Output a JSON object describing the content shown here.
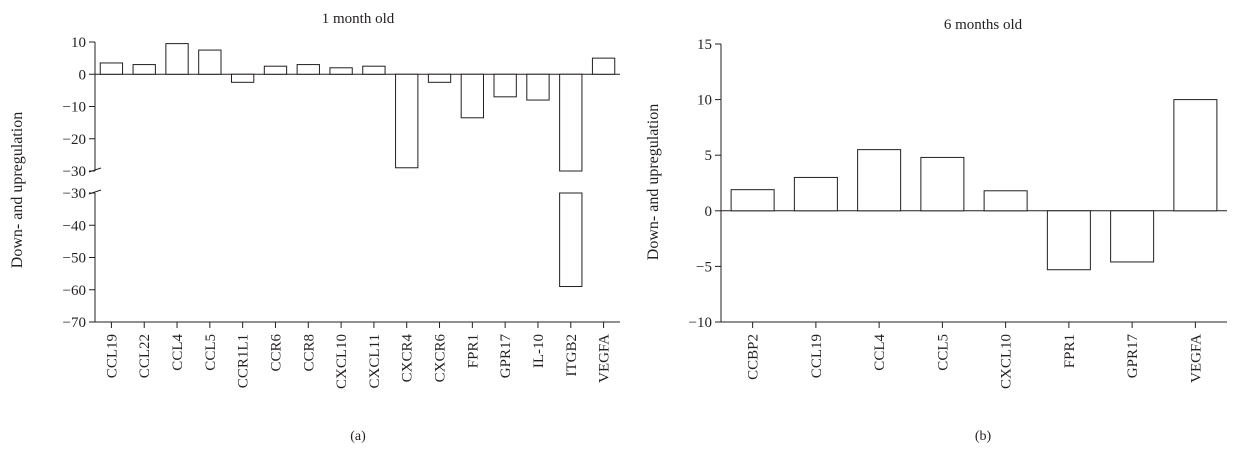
{
  "chart_data": [
    {
      "type": "bar",
      "panel_label": "(a)",
      "title": "1 month old",
      "xlabel": "",
      "ylabel": "Down- and upregulation",
      "categories": [
        "CCL19",
        "CCL22",
        "CCL4",
        "CCL5",
        "CCR1L1",
        "CCR6",
        "CCR8",
        "CXCL10",
        "CXCL11",
        "CXCR4",
        "CXCR6",
        "FPR1",
        "GPR17",
        "IL-10",
        "ITGB2",
        "VEGFA"
      ],
      "values": [
        3.5,
        3,
        9.5,
        7.5,
        -2.5,
        2.5,
        3,
        2,
        2.5,
        -29,
        -2.5,
        -13.5,
        -7,
        -8,
        -59,
        5
      ],
      "broken_axis": {
        "upper_ylim": [
          -30,
          10
        ],
        "upper_ticks": [
          10,
          0,
          -10,
          -20,
          -30
        ],
        "lower_ylim": [
          -70,
          -30
        ],
        "lower_ticks": [
          -30,
          -40,
          -50,
          -60,
          -70
        ]
      },
      "grid": false
    },
    {
      "type": "bar",
      "panel_label": "(b)",
      "title": "6 months old",
      "xlabel": "",
      "ylabel": "Down- and upregulation",
      "categories": [
        "CCBP2",
        "CCL19",
        "CCL4",
        "CCL5",
        "CXCL10",
        "FPR1",
        "GPR17",
        "VEGFA"
      ],
      "values": [
        1.9,
        3,
        5.5,
        4.8,
        1.8,
        -5.3,
        -4.6,
        10
      ],
      "ylim": [
        -10,
        15
      ],
      "yticks": [
        15,
        10,
        5,
        0,
        -5,
        -10
      ],
      "grid": false
    }
  ]
}
